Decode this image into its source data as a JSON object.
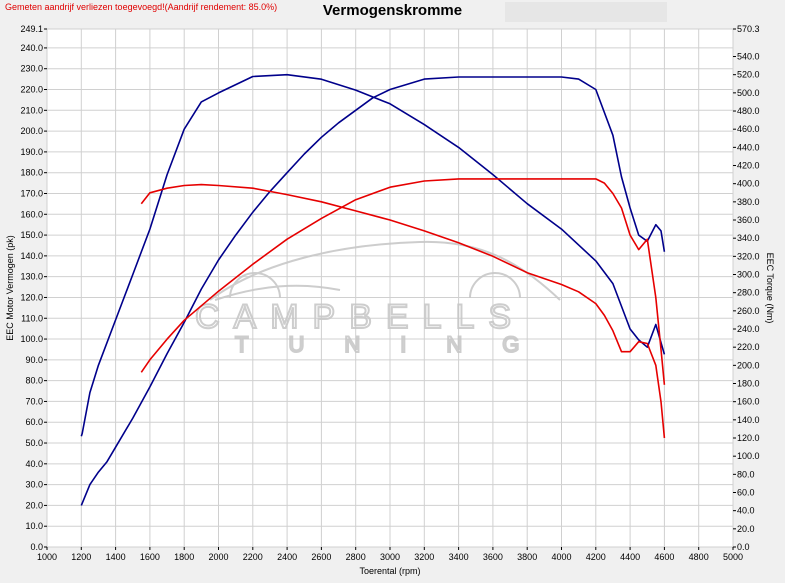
{
  "note": "Gemeten aandrijf verliezen toegevoegd!(Aandrijf rendement: 85.0%)",
  "watermark": {
    "line1": "CAMPBELLS",
    "line2": "TUNING"
  },
  "chart_data": {
    "type": "line",
    "title": "Vermogenskromme",
    "xlabel": "Toerental (rpm)",
    "ylabel_left": "EEC Motor Vermogen (pk)",
    "ylabel_right": "EEC Torque (Nm)",
    "xlim": [
      1000,
      5000
    ],
    "ylim_left": [
      0.0,
      249.1
    ],
    "ylim_right": [
      0.0,
      570.3
    ],
    "grid": true,
    "x_ticks": [
      "1000",
      "1200",
      "1400",
      "1600",
      "1800",
      "2000",
      "2200",
      "2400",
      "2600",
      "2800",
      "3000",
      "3200",
      "3400",
      "3600",
      "3800",
      "4000",
      "4200",
      "4400",
      "4600",
      "4800",
      "5000"
    ],
    "y_left_ticks": [
      "0.0",
      "10.0",
      "20.0",
      "30.0",
      "40.0",
      "50.0",
      "60.0",
      "70.0",
      "80.0",
      "90.0",
      "100.0",
      "110.0",
      "120.0",
      "130.0",
      "140.0",
      "150.0",
      "160.0",
      "170.0",
      "180.0",
      "190.0",
      "200.0",
      "210.0",
      "220.0",
      "230.0",
      "240.0",
      "249.1"
    ],
    "y_right_ticks": [
      "0.0",
      "20.0",
      "40.0",
      "60.0",
      "80.0",
      "100.0",
      "120.0",
      "140.0",
      "160.0",
      "180.0",
      "200.0",
      "220.0",
      "240.0",
      "260.0",
      "280.0",
      "300.0",
      "320.0",
      "340.0",
      "360.0",
      "380.0",
      "400.0",
      "420.0",
      "440.0",
      "460.0",
      "480.0",
      "500.0",
      "520.0",
      "540.0",
      "570.3"
    ],
    "series": [
      {
        "color": "#00008b",
        "axis": "left",
        "x": [
          1200,
          1205,
          1250,
          1300,
          1350,
          1400,
          1500,
          1600,
          1700,
          1800,
          1900,
          2000,
          2100,
          2200,
          2300,
          2400,
          2500,
          2600,
          2700,
          2800,
          2900,
          3000,
          3200,
          3400,
          3600,
          3800,
          4000,
          4100,
          4200,
          4300,
          4350,
          4400,
          4450,
          4500,
          4550,
          4580,
          4600
        ],
        "y": [
          20,
          21,
          30,
          36,
          41,
          48,
          62,
          77,
          93,
          108,
          124,
          138,
          150,
          161,
          171,
          180,
          189,
          197,
          204,
          210,
          216,
          220,
          225,
          226,
          226,
          226,
          226,
          225,
          220,
          198,
          178,
          163,
          150,
          147,
          155,
          152,
          142
        ]
      },
      {
        "color": "#00008b",
        "axis": "right",
        "x": [
          1200,
          1205,
          1250,
          1300,
          1400,
          1500,
          1600,
          1700,
          1800,
          1900,
          2000,
          2200,
          2400,
          2600,
          2800,
          3000,
          3200,
          3400,
          3600,
          3800,
          4000,
          4200,
          4300,
          4400,
          4450,
          4500,
          4550,
          4580,
          4600
        ],
        "y": [
          122,
          125,
          170,
          200,
          250,
          300,
          350,
          410,
          460,
          490,
          500,
          518,
          520,
          515,
          503,
          488,
          465,
          440,
          410,
          378,
          350,
          315,
          290,
          240,
          228,
          220,
          245,
          225,
          212
        ]
      },
      {
        "color": "#e60000",
        "axis": "left",
        "x": [
          1550,
          1600,
          1700,
          1800,
          1900,
          2000,
          2200,
          2400,
          2600,
          2800,
          3000,
          3200,
          3400,
          3600,
          3800,
          4000,
          4100,
          4200,
          4250,
          4300,
          4350,
          4400,
          4450,
          4500,
          4550,
          4580,
          4600
        ],
        "y": [
          84,
          90,
          100,
          109,
          116,
          123,
          136,
          148,
          158,
          167,
          173,
          176,
          177,
          177,
          177,
          177,
          177,
          177,
          175,
          170,
          163,
          150,
          143,
          148,
          120,
          95,
          78
        ]
      },
      {
        "color": "#e60000",
        "axis": "right",
        "x": [
          1550,
          1600,
          1700,
          1800,
          1900,
          2000,
          2200,
          2400,
          2600,
          2800,
          3000,
          3200,
          3400,
          3600,
          3800,
          4000,
          4100,
          4200,
          4250,
          4300,
          4350,
          4400,
          4450,
          4500,
          4550,
          4580,
          4600
        ],
        "y": [
          378,
          390,
          395,
          398,
          399,
          398,
          395,
          388,
          380,
          370,
          360,
          348,
          335,
          320,
          302,
          289,
          281,
          268,
          255,
          238,
          215,
          215,
          226,
          224,
          200,
          160,
          120
        ]
      }
    ]
  }
}
